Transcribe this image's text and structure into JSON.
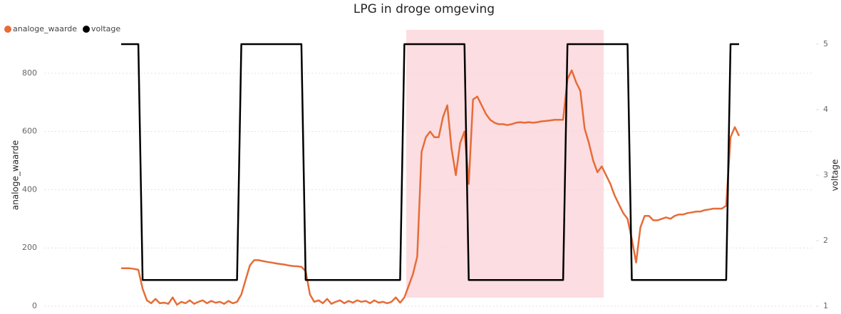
{
  "chart_data": {
    "type": "line",
    "title": "LPG in droge omgeving",
    "y_label": "analoge_waarde",
    "y2_label": "voltage",
    "ylim": [
      0,
      900
    ],
    "yticks": [
      0,
      200,
      400,
      600,
      800
    ],
    "y2lim": [
      1,
      5
    ],
    "y2ticks": [
      1,
      2,
      3,
      4,
      5
    ],
    "grid": true,
    "legend": "top-left",
    "series": [
      {
        "name": "analoge_waarde",
        "color": "#e66c37",
        "values": [
          130,
          130,
          130,
          128,
          125,
          60,
          20,
          10,
          25,
          10,
          12,
          8,
          30,
          5,
          15,
          10,
          20,
          8,
          15,
          20,
          10,
          18,
          12,
          15,
          8,
          18,
          10,
          15,
          40,
          90,
          140,
          158,
          158,
          155,
          152,
          150,
          147,
          145,
          143,
          140,
          138,
          137,
          135,
          120,
          40,
          15,
          20,
          10,
          25,
          8,
          15,
          20,
          10,
          18,
          12,
          20,
          15,
          18,
          10,
          20,
          12,
          15,
          10,
          15,
          30,
          12,
          30,
          70,
          110,
          170,
          530,
          580,
          600,
          580,
          580,
          650,
          690,
          540,
          450,
          560,
          600,
          420,
          710,
          720,
          690,
          660,
          640,
          630,
          625,
          625,
          622,
          625,
          630,
          632,
          630,
          632,
          630,
          632,
          635,
          636,
          638,
          640,
          640,
          640,
          780,
          810,
          770,
          740,
          610,
          560,
          500,
          460,
          480,
          450,
          420,
          380,
          350,
          320,
          300,
          230,
          150,
          270,
          310,
          310,
          295,
          295,
          300,
          305,
          300,
          310,
          315,
          315,
          320,
          322,
          325,
          325,
          330,
          332,
          335,
          335,
          335,
          345,
          580,
          615,
          585
        ]
      },
      {
        "name": "voltage",
        "color": "#000000",
        "axis": "y2",
        "values": [
          5,
          5,
          5,
          5,
          5,
          1.4,
          1.4,
          1.4,
          1.4,
          1.4,
          1.4,
          1.4,
          1.4,
          1.4,
          1.4,
          1.4,
          1.4,
          1.4,
          1.4,
          1.4,
          1.4,
          1.4,
          1.4,
          1.4,
          1.4,
          1.4,
          1.4,
          1.4,
          5,
          5,
          5,
          5,
          5,
          5,
          5,
          5,
          5,
          5,
          5,
          5,
          5,
          5,
          5,
          1.4,
          1.4,
          1.4,
          1.4,
          1.4,
          1.4,
          1.4,
          1.4,
          1.4,
          1.4,
          1.4,
          1.4,
          1.4,
          1.4,
          1.4,
          1.4,
          1.4,
          1.4,
          1.4,
          1.4,
          1.4,
          1.4,
          1.4,
          5,
          5,
          5,
          5,
          5,
          5,
          5,
          5,
          5,
          5,
          5,
          5,
          5,
          5,
          5,
          1.4,
          1.4,
          1.4,
          1.4,
          1.4,
          1.4,
          1.4,
          1.4,
          1.4,
          1.4,
          1.4,
          1.4,
          1.4,
          1.4,
          1.4,
          1.4,
          1.4,
          1.4,
          1.4,
          1.4,
          1.4,
          1.4,
          1.4,
          5,
          5,
          5,
          5,
          5,
          5,
          5,
          5,
          5,
          5,
          5,
          5,
          5,
          5,
          5,
          1.4,
          1.4,
          1.4,
          1.4,
          1.4,
          1.4,
          1.4,
          1.4,
          1.4,
          1.4,
          1.4,
          1.4,
          1.4,
          1.4,
          1.4,
          1.4,
          1.4,
          1.4,
          1.4,
          1.4,
          1.4,
          1.4,
          1.4,
          5,
          5,
          5
        ]
      }
    ]
  }
}
